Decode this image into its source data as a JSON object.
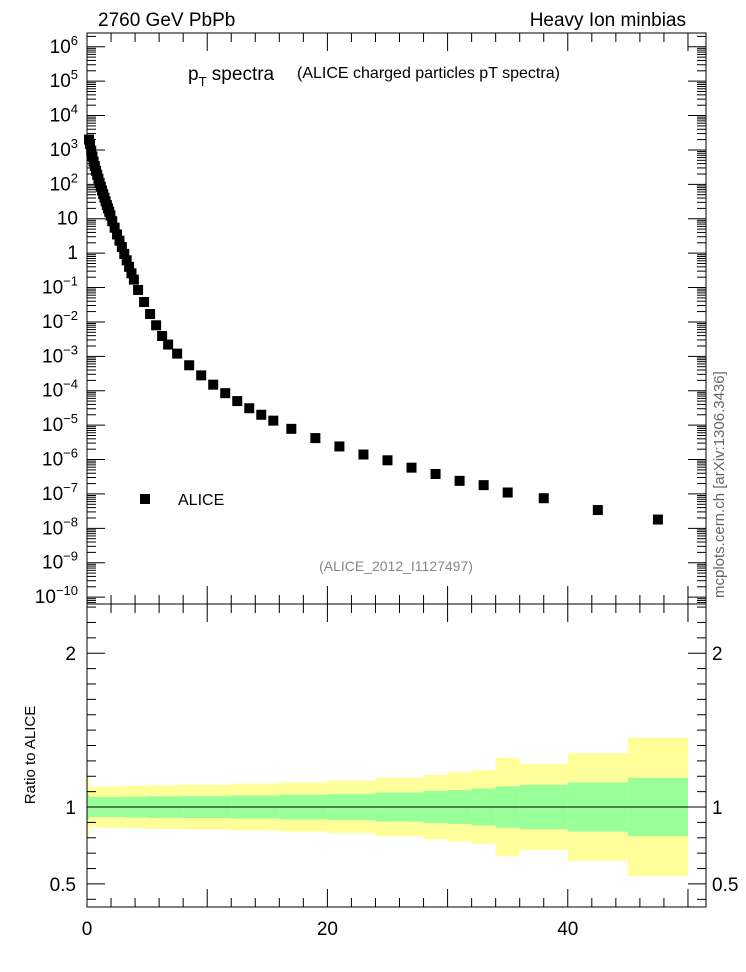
{
  "header": {
    "left": "2760 GeV PbPb",
    "right": "Heavy Ion minbias"
  },
  "side_label": "mcplots.cern.ch [arXiv:1306.3436]",
  "chart_data": [
    {
      "type": "scatter",
      "title_main": "p",
      "title_sub": "T",
      "title_main2": " spectra",
      "title_extra": "(ALICE charged particles pT spectra)",
      "analysis_tag": "(ALICE_2012_I1127497)",
      "y_scale": "log",
      "xlim": [
        0,
        51.5
      ],
      "ylim_log10": [
        -10.2,
        6.4
      ],
      "y_tick_labels": [
        "10-10",
        "10-9",
        "10-8",
        "10-7",
        "10-6",
        "10-5",
        "10-4",
        "10-3",
        "10-2",
        "10-1",
        "1",
        "10",
        "102",
        "103",
        "104",
        "105",
        "106"
      ],
      "legend": {
        "placement": "bottom-left",
        "entries": [
          "ALICE"
        ]
      },
      "series": [
        {
          "name": "ALICE",
          "marker": "square",
          "color": "#000000",
          "points": [
            [
              0.17,
              2000
            ],
            [
              0.25,
              1500
            ],
            [
              0.35,
              950
            ],
            [
              0.45,
              650
            ],
            [
              0.55,
              460
            ],
            [
              0.65,
              340
            ],
            [
              0.75,
              250
            ],
            [
              0.85,
              190
            ],
            [
              0.95,
              145
            ],
            [
              1.05,
              110
            ],
            [
              1.15,
              85
            ],
            [
              1.25,
              66
            ],
            [
              1.35,
              52
            ],
            [
              1.45,
              41
            ],
            [
              1.55,
              32
            ],
            [
              1.65,
              25
            ],
            [
              1.75,
              20
            ],
            [
              1.85,
              16
            ],
            [
              1.95,
              12.5
            ],
            [
              2.1,
              8.5
            ],
            [
              2.3,
              5.5
            ],
            [
              2.5,
              3.5
            ],
            [
              2.7,
              2.3
            ],
            [
              2.9,
              1.5
            ],
            [
              3.1,
              0.95
            ],
            [
              3.3,
              0.62
            ],
            [
              3.5,
              0.4
            ],
            [
              3.7,
              0.26
            ],
            [
              3.9,
              0.17
            ],
            [
              4.25,
              0.085
            ],
            [
              4.75,
              0.038
            ],
            [
              5.25,
              0.017
            ],
            [
              5.75,
              0.008
            ],
            [
              6.25,
              0.0039
            ],
            [
              6.75,
              0.0022
            ],
            [
              7.5,
              0.0012
            ],
            [
              8.5,
              0.00055
            ],
            [
              9.5,
              0.00028
            ],
            [
              10.5,
              0.00015
            ],
            [
              11.5,
              8.5e-05
            ],
            [
              12.5,
              5e-05
            ],
            [
              13.5,
              3.1e-05
            ],
            [
              14.5,
              2e-05
            ],
            [
              15.5,
              1.35e-05
            ],
            [
              17,
              7.8e-06
            ],
            [
              19,
              4.2e-06
            ],
            [
              21,
              2.4e-06
            ],
            [
              23,
              1.4e-06
            ],
            [
              25,
              9.5e-07
            ],
            [
              27,
              5.8e-07
            ],
            [
              29,
              3.8e-07
            ],
            [
              31,
              2.4e-07
            ],
            [
              33,
              1.8e-07
            ],
            [
              35,
              1.1e-07
            ],
            [
              38,
              7.5e-08
            ],
            [
              42.5,
              3.4e-08
            ],
            [
              47.5,
              1.8e-08
            ]
          ]
        }
      ]
    },
    {
      "type": "area",
      "ylabel": "Ratio to ALICE",
      "xlim": [
        0,
        51.5
      ],
      "ylim": [
        0.35,
        2.32
      ],
      "y_tick_labels": [
        "0.5",
        "1",
        "2"
      ],
      "x_tick_labels": [
        "0",
        "20",
        "40"
      ],
      "reference_line": 1,
      "bands": {
        "inner_color": "#99ff99",
        "outer_color": "#ffff99",
        "bins": [
          {
            "x": [
              0,
              0.2
            ],
            "inner": [
              0.92,
              1.08
            ],
            "outer": [
              0.8,
              1.2
            ]
          },
          {
            "x": [
              0.2,
              1
            ],
            "inner": [
              0.935,
              1.065
            ],
            "outer": [
              0.87,
              1.13
            ]
          },
          {
            "x": [
              1,
              3
            ],
            "inner": [
              0.935,
              1.065
            ],
            "outer": [
              0.865,
              1.135
            ]
          },
          {
            "x": [
              3,
              5
            ],
            "inner": [
              0.932,
              1.068
            ],
            "outer": [
              0.862,
              1.138
            ]
          },
          {
            "x": [
              5,
              8
            ],
            "inner": [
              0.93,
              1.07
            ],
            "outer": [
              0.858,
              1.142
            ]
          },
          {
            "x": [
              8,
              12
            ],
            "inner": [
              0.928,
              1.072
            ],
            "outer": [
              0.855,
              1.145
            ]
          },
          {
            "x": [
              12,
              16
            ],
            "inner": [
              0.925,
              1.075
            ],
            "outer": [
              0.848,
              1.152
            ]
          },
          {
            "x": [
              16,
              20
            ],
            "inner": [
              0.92,
              1.08
            ],
            "outer": [
              0.84,
              1.16
            ]
          },
          {
            "x": [
              20,
              24
            ],
            "inner": [
              0.915,
              1.085
            ],
            "outer": [
              0.83,
              1.17
            ]
          },
          {
            "x": [
              24,
              28
            ],
            "inner": [
              0.905,
              1.095
            ],
            "outer": [
              0.81,
              1.19
            ]
          },
          {
            "x": [
              28,
              30
            ],
            "inner": [
              0.895,
              1.105
            ],
            "outer": [
              0.79,
              1.21
            ]
          },
          {
            "x": [
              30,
              32
            ],
            "inner": [
              0.89,
              1.11
            ],
            "outer": [
              0.775,
              1.225
            ]
          },
          {
            "x": [
              32,
              34
            ],
            "inner": [
              0.88,
              1.12
            ],
            "outer": [
              0.76,
              1.24
            ]
          },
          {
            "x": [
              34,
              36
            ],
            "inner": [
              0.865,
              1.135
            ],
            "outer": [
              0.68,
              1.32
            ]
          },
          {
            "x": [
              36,
              40
            ],
            "inner": [
              0.855,
              1.145
            ],
            "outer": [
              0.72,
              1.28
            ]
          },
          {
            "x": [
              40,
              45
            ],
            "inner": [
              0.84,
              1.16
            ],
            "outer": [
              0.65,
              1.35
            ]
          },
          {
            "x": [
              45,
              50
            ],
            "inner": [
              0.81,
              1.19
            ],
            "outer": [
              0.55,
              1.45
            ]
          }
        ]
      }
    }
  ]
}
